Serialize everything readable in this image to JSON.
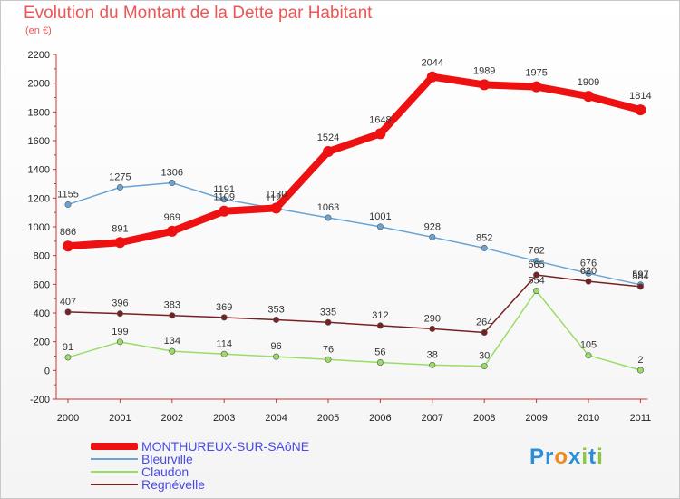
{
  "header": {
    "title": "Evolution du Montant de la Dette par Habitant",
    "unit": "(en €)"
  },
  "logo": {
    "text": "Proxiti",
    "letters": [
      "P",
      "r",
      "o",
      "x",
      "i",
      "t",
      "i"
    ],
    "colors": [
      "#2a8fd8",
      "#2a8fd8",
      "#f08a1c",
      "#2a8fd8",
      "#8cc63f",
      "#2a8fd8",
      "#8cc63f"
    ]
  },
  "chart_data": {
    "type": "line",
    "title": "Evolution du Montant de la Dette par Habitant",
    "subtitle": "(en €)",
    "x": [
      "2000",
      "2001",
      "2002",
      "2003",
      "2004",
      "2005",
      "2006",
      "2007",
      "2008",
      "2009",
      "2010",
      "2011"
    ],
    "ylim": [
      -200,
      2200
    ],
    "yticks": [
      -200,
      0,
      200,
      400,
      600,
      800,
      1000,
      1200,
      1400,
      1600,
      1800,
      2000,
      2200
    ],
    "grid": false,
    "legend": "bottom-left",
    "series": [
      {
        "name": "MONTHUREUX-SUR-SAôNE",
        "color": "#ee1111",
        "values": [
          866,
          891,
          969,
          1109,
          1130,
          1524,
          1648,
          2044,
          1989,
          1975,
          1909,
          1814
        ]
      },
      {
        "name": "Bleurville",
        "color": "#6aa4d4",
        "values": [
          1155,
          1275,
          1306,
          1191,
          1127,
          1063,
          1001,
          928,
          852,
          762,
          676,
          597
        ]
      },
      {
        "name": "Claudon",
        "color": "#99dd66",
        "values": [
          91,
          199,
          134,
          114,
          96,
          76,
          56,
          38,
          30,
          554,
          105,
          2
        ]
      },
      {
        "name": "Regnévelle",
        "color": "#772222",
        "values": [
          407,
          396,
          383,
          369,
          353,
          335,
          312,
          290,
          264,
          665,
          620,
          584
        ]
      }
    ]
  }
}
